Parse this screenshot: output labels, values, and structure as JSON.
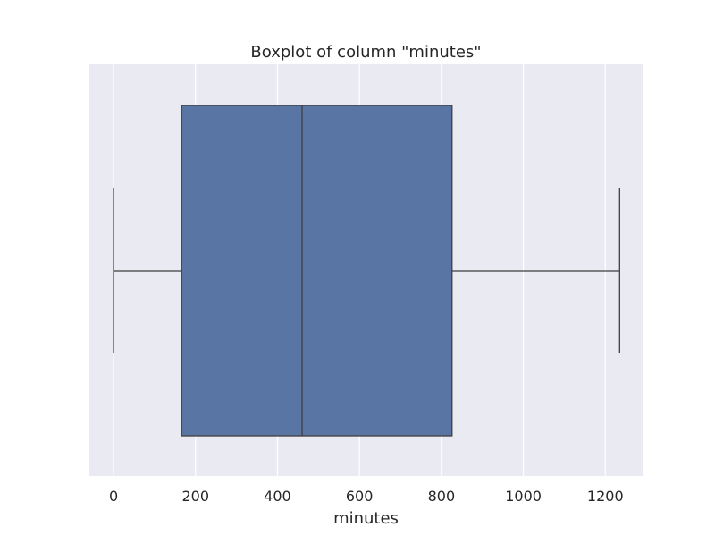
{
  "chart_data": {
    "type": "boxplot",
    "title": "Boxplot of column \"minutes\"",
    "xlabel": "minutes",
    "ylabel": "",
    "xlim": [
      -59,
      1291
    ],
    "x_ticks": [
      0,
      200,
      400,
      600,
      800,
      1000,
      1200
    ],
    "x_tick_labels": [
      "0",
      "200",
      "400",
      "600",
      "800",
      "1000",
      "1200"
    ],
    "grid": true,
    "series": [
      {
        "whisker_low": 0,
        "q1": 166,
        "median": 460,
        "q3": 826,
        "whisker_high": 1235
      }
    ],
    "colors": {
      "background": "#eaeaf2",
      "grid": "#ffffff",
      "box_fill": "#5975a4",
      "box_edge": "#3f3f3f"
    }
  }
}
